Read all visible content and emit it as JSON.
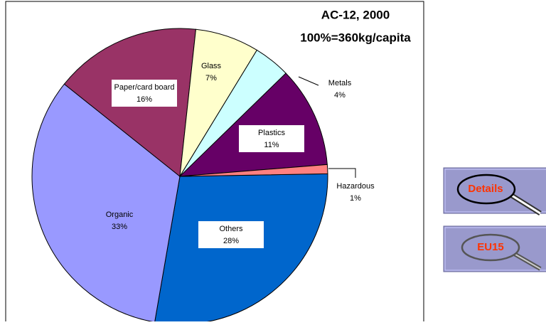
{
  "chart_data": {
    "type": "pie",
    "title": "AC-12, 2000",
    "subtitle": "100%=360kg/capita",
    "categories": [
      "Others",
      "Organic",
      "Paper/card board",
      "Glass",
      "Metals",
      "Plastics",
      "Hazardous"
    ],
    "values": [
      28,
      33,
      16,
      7,
      4,
      11,
      1
    ],
    "value_labels": [
      "28%",
      "33%",
      "16%",
      "7%",
      "4%",
      "11%",
      "1%"
    ],
    "colors": [
      "#0066cc",
      "#9999ff",
      "#993366",
      "#ffffcc",
      "#ccffff",
      "#660066",
      "#ff8080"
    ]
  },
  "buttons": [
    "Details",
    "EU15"
  ]
}
